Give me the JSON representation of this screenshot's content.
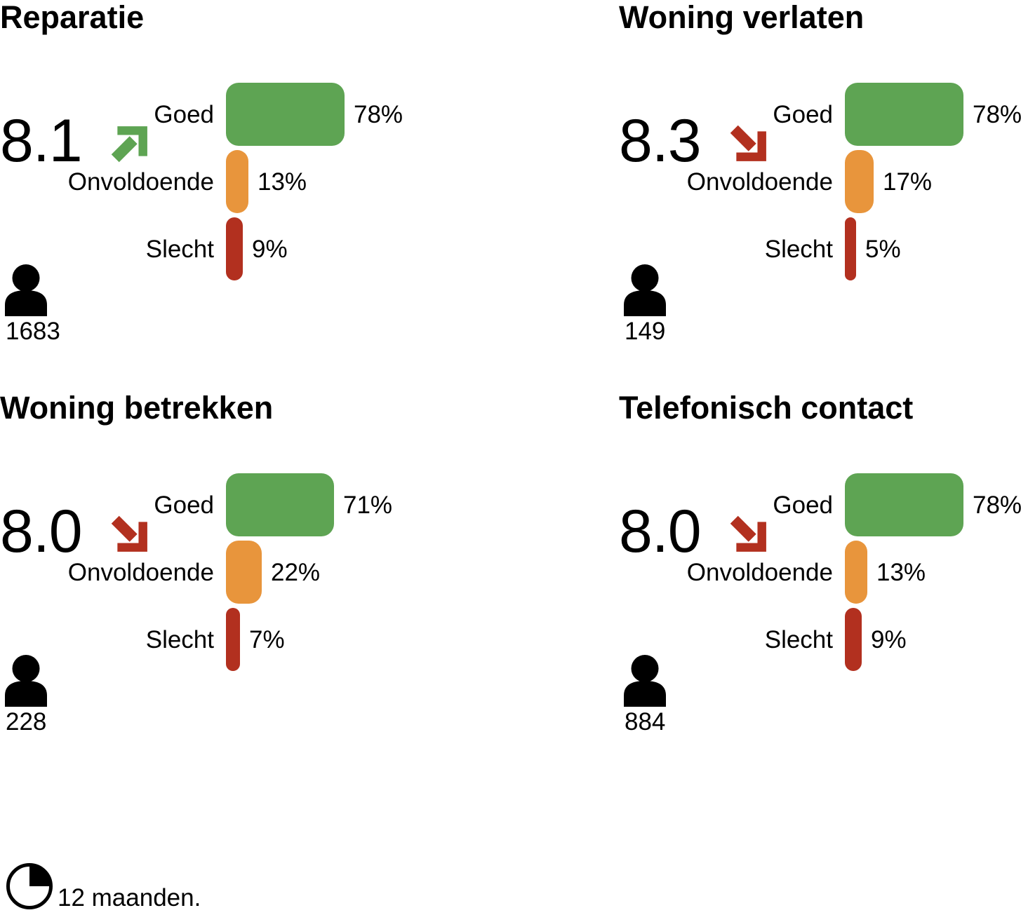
{
  "colors": {
    "good": "#5EA453",
    "insufficient": "#E8953C",
    "bad": "#B2301F",
    "trend_up": "#5EA453",
    "trend_down": "#B2301F",
    "text": "#000000",
    "background": "#FFFFFF"
  },
  "panels": [
    {
      "title": "Reparatie",
      "score": "8.1",
      "trend": "up",
      "respondents": "1683",
      "bars": [
        {
          "label": "Goed",
          "value": 78,
          "pct": "78%",
          "color_key": "good"
        },
        {
          "label": "Onvoldoende",
          "value": 13,
          "pct": "13%",
          "color_key": "insufficient"
        },
        {
          "label": "Slecht",
          "value": 9,
          "pct": "9%",
          "color_key": "bad"
        }
      ]
    },
    {
      "title": "Woning verlaten",
      "score": "8.3",
      "trend": "down",
      "respondents": "149",
      "bars": [
        {
          "label": "Goed",
          "value": 78,
          "pct": "78%",
          "color_key": "good"
        },
        {
          "label": "Onvoldoende",
          "value": 17,
          "pct": "17%",
          "color_key": "insufficient"
        },
        {
          "label": "Slecht",
          "value": 5,
          "pct": "5%",
          "color_key": "bad"
        }
      ]
    },
    {
      "title": "Woning betrekken",
      "score": "8.0",
      "trend": "down",
      "respondents": "228",
      "bars": [
        {
          "label": "Goed",
          "value": 71,
          "pct": "71%",
          "color_key": "good"
        },
        {
          "label": "Onvoldoende",
          "value": 22,
          "pct": "22%",
          "color_key": "insufficient"
        },
        {
          "label": "Slecht",
          "value": 7,
          "pct": "7%",
          "color_key": "bad"
        }
      ]
    },
    {
      "title": "Telefonisch contact",
      "score": "8.0",
      "trend": "down",
      "respondents": "884",
      "bars": [
        {
          "label": "Goed",
          "value": 78,
          "pct": "78%",
          "color_key": "good"
        },
        {
          "label": "Onvoldoende",
          "value": 13,
          "pct": "13%",
          "color_key": "insufficient"
        },
        {
          "label": "Slecht",
          "value": 9,
          "pct": "9%",
          "color_key": "bad"
        }
      ]
    }
  ],
  "footer": {
    "period": "12 maanden."
  },
  "chart_data": [
    {
      "type": "bar",
      "title": "Reparatie",
      "orientation": "horizontal",
      "categories": [
        "Goed",
        "Onvoldoende",
        "Slecht"
      ],
      "values": [
        78,
        13,
        9
      ],
      "unit": "%",
      "score": 8.1,
      "trend": "up",
      "respondents": 1683,
      "xlim": [
        0,
        100
      ],
      "grid": false,
      "legend": false
    },
    {
      "type": "bar",
      "title": "Woning verlaten",
      "orientation": "horizontal",
      "categories": [
        "Goed",
        "Onvoldoende",
        "Slecht"
      ],
      "values": [
        78,
        17,
        5
      ],
      "unit": "%",
      "score": 8.3,
      "trend": "down",
      "respondents": 149,
      "xlim": [
        0,
        100
      ],
      "grid": false,
      "legend": false
    },
    {
      "type": "bar",
      "title": "Woning betrekken",
      "orientation": "horizontal",
      "categories": [
        "Goed",
        "Onvoldoende",
        "Slecht"
      ],
      "values": [
        71,
        22,
        7
      ],
      "unit": "%",
      "score": 8.0,
      "trend": "down",
      "respondents": 228,
      "xlim": [
        0,
        100
      ],
      "grid": false,
      "legend": false
    },
    {
      "type": "bar",
      "title": "Telefonisch contact",
      "orientation": "horizontal",
      "categories": [
        "Goed",
        "Onvoldoende",
        "Slecht"
      ],
      "values": [
        78,
        13,
        9
      ],
      "unit": "%",
      "score": 8.0,
      "trend": "down",
      "respondents": 884,
      "xlim": [
        0,
        100
      ],
      "grid": false,
      "legend": false
    },
    {
      "type": "note",
      "title": "Periode",
      "text": "12 maanden."
    }
  ]
}
